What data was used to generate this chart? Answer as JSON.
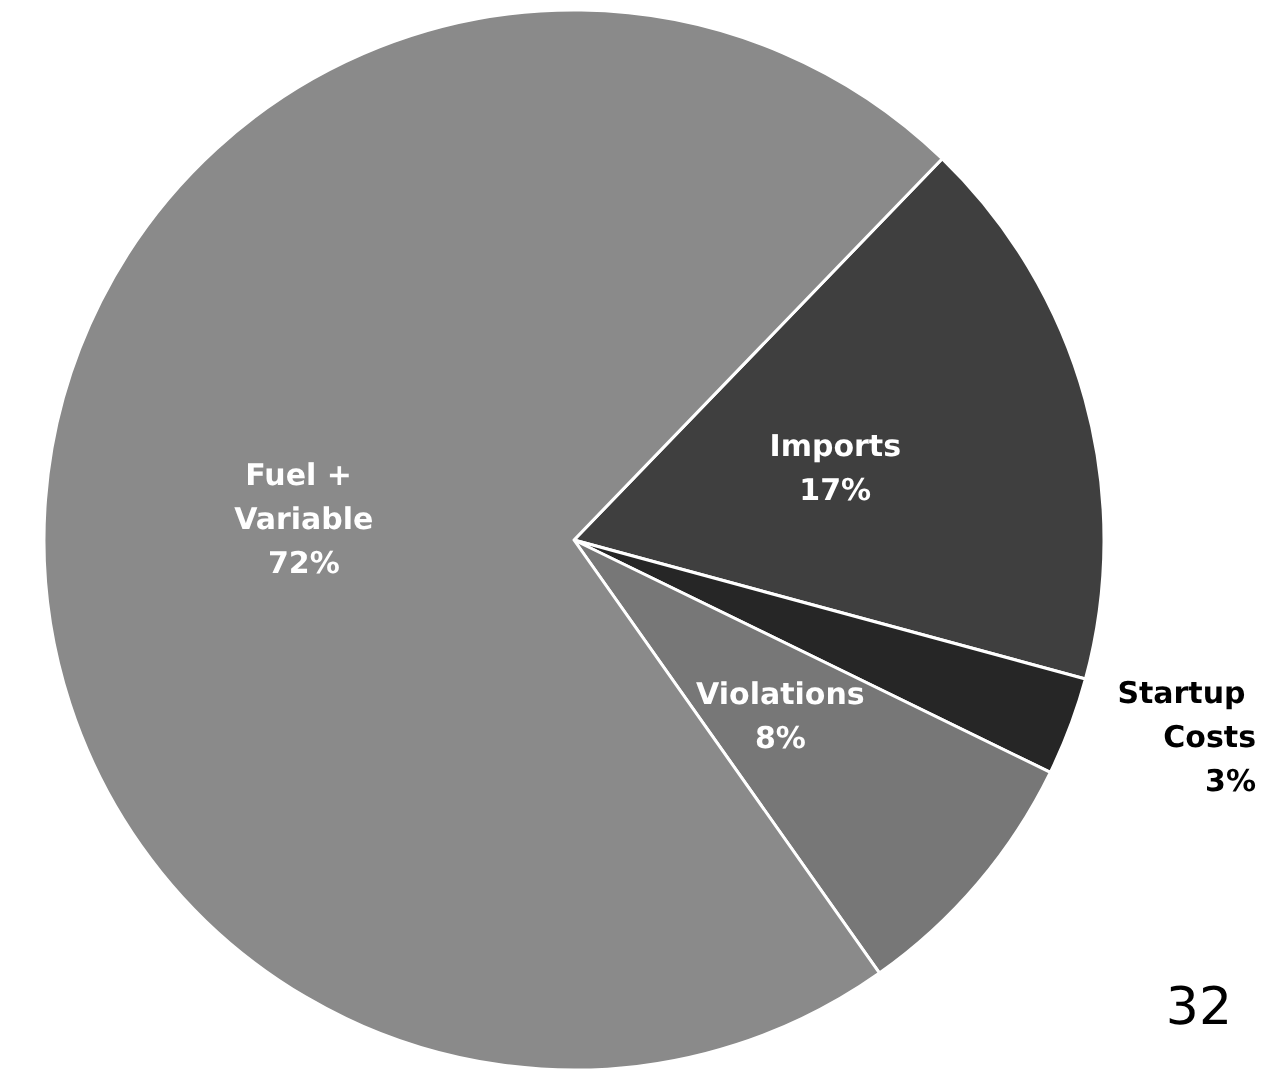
{
  "chart_data": {
    "type": "pie",
    "categories": [
      "Imports",
      "Startup Costs",
      "Violations",
      "Fuel + Variable"
    ],
    "values": [
      17,
      3,
      8,
      72
    ],
    "colors": [
      "#3f3f3f",
      "#262626",
      "#777777",
      "#8a8a8a"
    ],
    "value_labels": [
      "17%",
      "3%",
      "8%",
      "72%"
    ],
    "legend": false,
    "annotations": [
      "32"
    ]
  }
}
